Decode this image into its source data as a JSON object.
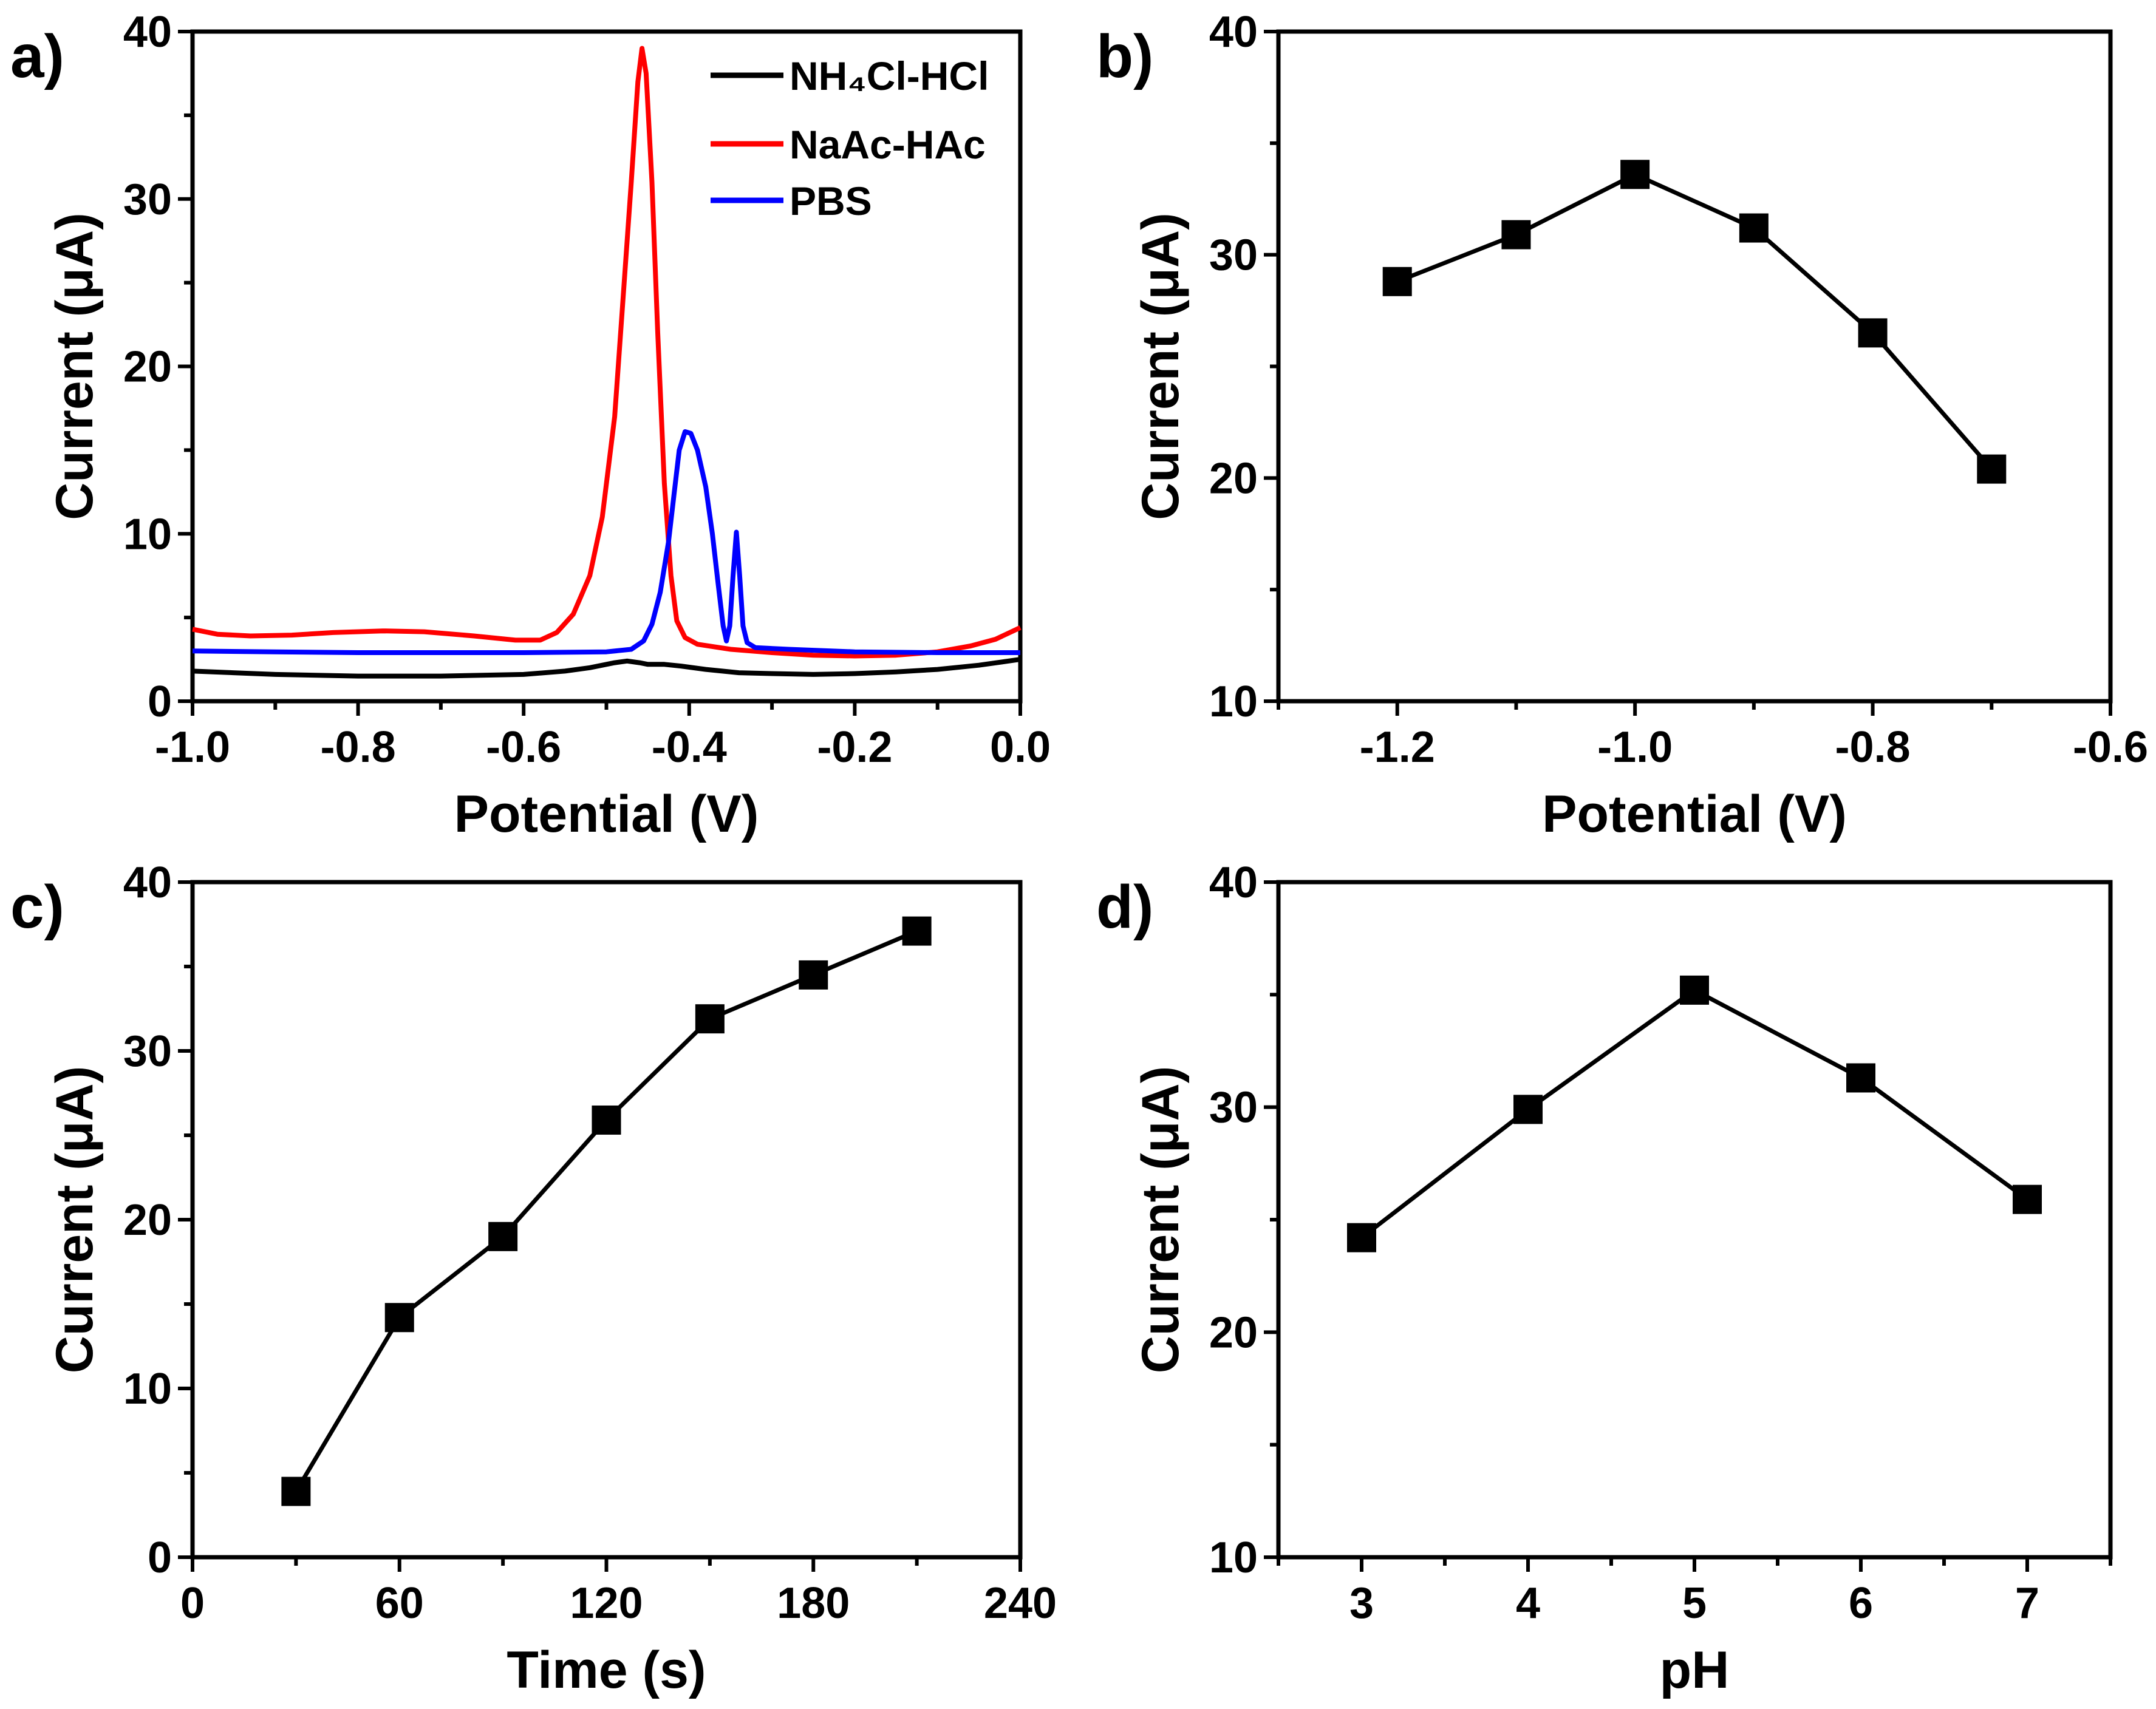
{
  "chart_data": [
    {
      "panel_label": "a)",
      "type": "line",
      "xlabel": "Potential (V)",
      "ylabel": "Current (μA)",
      "xlim": [
        -1.0,
        0.0
      ],
      "ylim": [
        0,
        40
      ],
      "xticks": [
        -1.0,
        -0.8,
        -0.6,
        -0.4,
        -0.2,
        0.0
      ],
      "xtick_labels": [
        "-1.0",
        "-0.8",
        "-0.6",
        "-0.4",
        "-0.2",
        "0.0"
      ],
      "yticks": [
        0,
        10,
        20,
        30,
        40
      ],
      "ytick_labels": [
        "0",
        "10",
        "20",
        "30",
        "40"
      ],
      "xminor": 0.1,
      "yminor": 5,
      "legend_position": "top-right",
      "series": [
        {
          "name": "NH₄Cl-HCl",
          "color": "#000000",
          "points": [
            [
              -1.0,
              1.8
            ],
            [
              -0.9,
              1.6
            ],
            [
              -0.8,
              1.5
            ],
            [
              -0.7,
              1.5
            ],
            [
              -0.6,
              1.6
            ],
            [
              -0.55,
              1.8
            ],
            [
              -0.52,
              2.0
            ],
            [
              -0.49,
              2.3
            ],
            [
              -0.475,
              2.4
            ],
            [
              -0.46,
              2.3
            ],
            [
              -0.45,
              2.2
            ],
            [
              -0.43,
              2.2
            ],
            [
              -0.41,
              2.1
            ],
            [
              -0.38,
              1.9
            ],
            [
              -0.34,
              1.7
            ],
            [
              -0.3,
              1.65
            ],
            [
              -0.25,
              1.6
            ],
            [
              -0.2,
              1.65
            ],
            [
              -0.15,
              1.75
            ],
            [
              -0.1,
              1.9
            ],
            [
              -0.05,
              2.15
            ],
            [
              0.0,
              2.5
            ]
          ]
        },
        {
          "name": "NaAc-HAc",
          "color": "#ff0000",
          "points": [
            [
              -1.0,
              4.3
            ],
            [
              -0.97,
              4.0
            ],
            [
              -0.93,
              3.9
            ],
            [
              -0.88,
              3.95
            ],
            [
              -0.83,
              4.1
            ],
            [
              -0.77,
              4.2
            ],
            [
              -0.72,
              4.15
            ],
            [
              -0.66,
              3.9
            ],
            [
              -0.61,
              3.65
            ],
            [
              -0.58,
              3.65
            ],
            [
              -0.56,
              4.1
            ],
            [
              -0.54,
              5.2
            ],
            [
              -0.52,
              7.5
            ],
            [
              -0.505,
              11
            ],
            [
              -0.49,
              17
            ],
            [
              -0.48,
              24
            ],
            [
              -0.47,
              31
            ],
            [
              -0.462,
              37
            ],
            [
              -0.457,
              39.0
            ],
            [
              -0.452,
              37.5
            ],
            [
              -0.445,
              31
            ],
            [
              -0.438,
              22
            ],
            [
              -0.43,
              13
            ],
            [
              -0.422,
              7.5
            ],
            [
              -0.415,
              4.8
            ],
            [
              -0.405,
              3.8
            ],
            [
              -0.39,
              3.4
            ],
            [
              -0.35,
              3.1
            ],
            [
              -0.3,
              2.9
            ],
            [
              -0.25,
              2.75
            ],
            [
              -0.2,
              2.7
            ],
            [
              -0.15,
              2.75
            ],
            [
              -0.1,
              2.95
            ],
            [
              -0.06,
              3.3
            ],
            [
              -0.03,
              3.7
            ],
            [
              0.0,
              4.4
            ]
          ]
        },
        {
          "name": "PBS",
          "color": "#0000ff",
          "points": [
            [
              -1.0,
              3.0
            ],
            [
              -0.9,
              2.95
            ],
            [
              -0.8,
              2.9
            ],
            [
              -0.7,
              2.9
            ],
            [
              -0.6,
              2.9
            ],
            [
              -0.5,
              2.95
            ],
            [
              -0.47,
              3.1
            ],
            [
              -0.455,
              3.6
            ],
            [
              -0.445,
              4.6
            ],
            [
              -0.435,
              6.5
            ],
            [
              -0.425,
              9.5
            ],
            [
              -0.418,
              12.5
            ],
            [
              -0.412,
              15
            ],
            [
              -0.405,
              16.1
            ],
            [
              -0.398,
              16.0
            ],
            [
              -0.39,
              15.0
            ],
            [
              -0.38,
              12.8
            ],
            [
              -0.372,
              10
            ],
            [
              -0.365,
              7
            ],
            [
              -0.359,
              4.5
            ],
            [
              -0.355,
              3.6
            ],
            [
              -0.351,
              4.5
            ],
            [
              -0.347,
              7.5
            ],
            [
              -0.343,
              10.1
            ],
            [
              -0.339,
              7.5
            ],
            [
              -0.335,
              4.5
            ],
            [
              -0.33,
              3.5
            ],
            [
              -0.32,
              3.2
            ],
            [
              -0.28,
              3.1
            ],
            [
              -0.2,
              2.95
            ],
            [
              -0.1,
              2.9
            ],
            [
              0.0,
              2.9
            ]
          ]
        }
      ]
    },
    {
      "panel_label": "b)",
      "type": "line",
      "xlabel": "Potential (V)",
      "ylabel": "Current (μA)",
      "xlim": [
        -1.3,
        -0.6
      ],
      "ylim": [
        10,
        40
      ],
      "xticks": [
        -1.2,
        -1.0,
        -0.8,
        -0.6
      ],
      "xtick_labels": [
        "-1.2",
        "-1.0",
        "-0.8",
        "-0.6"
      ],
      "yticks": [
        10,
        20,
        30,
        40
      ],
      "ytick_labels": [
        "10",
        "20",
        "30",
        "40"
      ],
      "xminor": 0.1,
      "yminor": 5,
      "series": [
        {
          "name": "current",
          "color": "#000000",
          "marker": "square",
          "points": [
            [
              -1.2,
              28.8
            ],
            [
              -1.1,
              30.9
            ],
            [
              -1.0,
              33.6
            ],
            [
              -0.9,
              31.2
            ],
            [
              -0.8,
              26.5
            ],
            [
              -0.7,
              20.4
            ]
          ]
        }
      ]
    },
    {
      "panel_label": "c)",
      "type": "line",
      "xlabel": "Time (s)",
      "ylabel": "Current (μA)",
      "xlim": [
        0,
        240
      ],
      "ylim": [
        0,
        40
      ],
      "xticks": [
        0,
        60,
        120,
        180,
        240
      ],
      "xtick_labels": [
        "0",
        "60",
        "120",
        "180",
        "240"
      ],
      "yticks": [
        0,
        10,
        20,
        30,
        40
      ],
      "ytick_labels": [
        "0",
        "10",
        "20",
        "30",
        "40"
      ],
      "xminor": 30,
      "yminor": 5,
      "series": [
        {
          "name": "current",
          "color": "#000000",
          "marker": "square",
          "points": [
            [
              30,
              3.9
            ],
            [
              60,
              14.2
            ],
            [
              90,
              19.0
            ],
            [
              120,
              25.9
            ],
            [
              150,
              31.9
            ],
            [
              180,
              34.5
            ],
            [
              210,
              37.1
            ]
          ]
        }
      ]
    },
    {
      "panel_label": "d)",
      "type": "line",
      "xlabel": "pH",
      "ylabel": "Current (μA)",
      "xlim": [
        2.5,
        7.5
      ],
      "ylim": [
        10,
        40
      ],
      "xticks": [
        3,
        4,
        5,
        6,
        7
      ],
      "xtick_labels": [
        "3",
        "4",
        "5",
        "6",
        "7"
      ],
      "yticks": [
        10,
        20,
        30,
        40
      ],
      "ytick_labels": [
        "10",
        "20",
        "30",
        "40"
      ],
      "xminor": 0.5,
      "yminor": 5,
      "series": [
        {
          "name": "current",
          "color": "#000000",
          "marker": "square",
          "points": [
            [
              3,
              24.2
            ],
            [
              4,
              29.9
            ],
            [
              5,
              35.2
            ],
            [
              6,
              31.3
            ],
            [
              7,
              25.9
            ]
          ]
        }
      ]
    }
  ]
}
